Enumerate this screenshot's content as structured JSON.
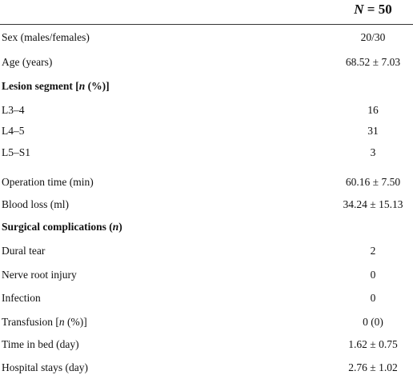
{
  "header": [
    {
      "italic": "N"
    },
    " = 50"
  ],
  "rows": [
    {
      "label": [
        "Sex (males/females)"
      ],
      "value": "20/30"
    },
    {
      "label": [
        "Age (years)"
      ],
      "value": "68.52 ± 7.03"
    },
    {
      "heading": [
        "Lesion segment [",
        {
          "italic": "n"
        },
        " (%)]"
      ]
    },
    {
      "label": [
        "L3–4"
      ],
      "value": "16"
    },
    {
      "label": [
        "L4–5"
      ],
      "value": "31"
    },
    {
      "label": [
        "L5–S1"
      ],
      "value": "3"
    },
    {
      "label": [
        "Operation time (min)"
      ],
      "value": "60.16 ± 7.50"
    },
    {
      "label": [
        "Blood loss (ml)"
      ],
      "value": "34.24 ± 15.13"
    },
    {
      "heading": [
        "Surgical complications (",
        {
          "italic": "n"
        },
        ")"
      ]
    },
    {
      "label": [
        "Dural tear"
      ],
      "value": "2"
    },
    {
      "label": [
        "Nerve root injury"
      ],
      "value": "0"
    },
    {
      "label": [
        "Infection"
      ],
      "value": "0"
    },
    {
      "label": [
        "Transfusion [",
        {
          "italic": "n"
        },
        " (%)]"
      ],
      "value": "0 (0)"
    },
    {
      "label": [
        "Time in bed (day)"
      ],
      "value": "1.62 ± 0.75"
    },
    {
      "label": [
        "Hospital stays (day)"
      ],
      "value": "2.76 ± 1.02"
    }
  ]
}
